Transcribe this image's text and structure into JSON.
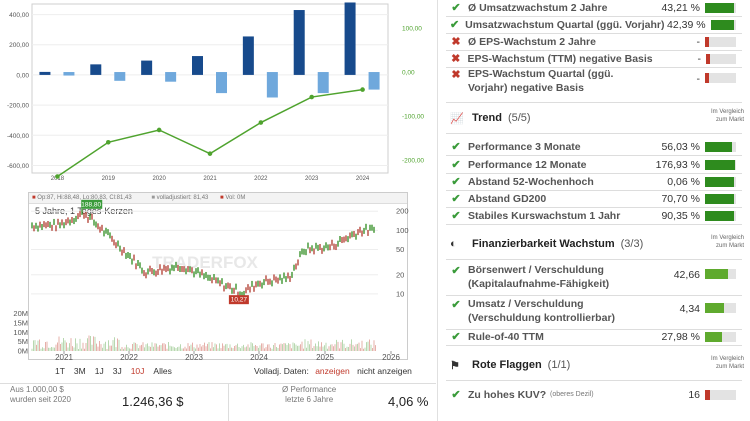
{
  "top_chart": {
    "left_ticks": [
      "400,00",
      "200,00",
      "0,00",
      "-200,00",
      "-400,00",
      "-600,00"
    ],
    "right_ticks": [
      "100,00",
      "0,00",
      "-100,00",
      "-200,00"
    ],
    "years": [
      "2018",
      "2019",
      "2020",
      "2021",
      "2022",
      "2023",
      "2024"
    ],
    "colors": {
      "dark_bar": "#174a8c",
      "light_bar": "#6fa8dc",
      "line": "#4fa32e"
    },
    "chart_data": {
      "type": "bar",
      "categories": [
        "2018",
        "2019",
        "2020",
        "2021",
        "2022",
        "2023",
        "2024"
      ],
      "series": [
        {
          "name": "",
          "axis": "left",
          "type": "bar",
          "values": [
            20,
            70,
            95,
            125,
            255,
            430,
            480
          ]
        },
        {
          "name": "",
          "axis": "right",
          "type": "bar",
          "values": [
            -8,
            -20,
            -22,
            -48,
            -58,
            -48,
            -40
          ]
        },
        {
          "name": "",
          "axis": "right",
          "type": "line",
          "values": [
            -238,
            -160,
            -132,
            -186,
            -115,
            -57,
            -40
          ]
        }
      ],
      "ylim": [
        -650,
        470
      ],
      "y2lim": [
        -230,
        155
      ]
    }
  },
  "price_chart": {
    "legend": [
      "Op:87, Hi:88,48, Lo:80,83, Cl:81,43",
      "volladjustiert: 81,43",
      "Vol: 0M"
    ],
    "title": "5 Jahre, 1 Tages-Kerzen",
    "watermark": "TRADERFOX",
    "right_ticks": [
      "200",
      "100",
      "50",
      "20",
      "10"
    ],
    "vol_ticks": [
      "20M",
      "15M",
      "10M",
      "5M",
      "0M"
    ],
    "year_ticks": [
      "2021",
      "2022",
      "2023",
      "2024",
      "2025",
      "2026"
    ],
    "high_flag": "188,80",
    "low_flag": "10,27",
    "chart_data": {
      "type": "line",
      "x": [
        "2021-01",
        "2021-06",
        "2022-01",
        "2022-06",
        "2023-01",
        "2023-06",
        "2024-01",
        "2024-04",
        "2024-10",
        "2025-01",
        "2025-06",
        "2025-12"
      ],
      "y": [
        120,
        188.8,
        55,
        22,
        28,
        18,
        10.27,
        15,
        18,
        50,
        55,
        100
      ],
      "log_scale": true,
      "ylim": [
        6,
        260
      ]
    },
    "periods": [
      "1T",
      "3M",
      "1J",
      "3J",
      "10J",
      "Alles"
    ],
    "active_period": "10J",
    "adj_label": "Volladj. Daten:",
    "adj_on": "anzeigen",
    "adj_off": "nicht anzeigen"
  },
  "info": {
    "left_label1": "Aus 1.000,00 $",
    "left_label2": "wurden seit 2020",
    "left_value": "1.246,36 $",
    "right_label1": "Ø Performance",
    "right_label2": "letzte 6 Jahre",
    "right_value": "4,06 %"
  },
  "growth": {
    "rows": [
      {
        "ok": true,
        "label": "Ø Umsatzwachstum 2 Jahre",
        "value": "43,21 %",
        "fill": 0.95,
        "color": "#2e8b1e"
      },
      {
        "ok": true,
        "label": "Umsatzwachstum Quartal (ggü. Vorjahr)",
        "value": "42,39 %",
        "fill": 0.92,
        "color": "#2e8b1e"
      },
      {
        "ok": false,
        "label": "Ø EPS-Wachstum 2 Jahre",
        "value": "-",
        "fill": 0.12,
        "color": "#c0392b"
      },
      {
        "ok": false,
        "label": "EPS-Wachstum (TTM) negative Basis",
        "value": "-",
        "fill": 0.12,
        "color": "#c0392b"
      },
      {
        "ok": false,
        "label": "EPS-Wachstum Quartal (ggü. Vorjahr) negative Basis",
        "value": "-",
        "fill": 0.12,
        "color": "#c0392b"
      }
    ]
  },
  "trend": {
    "title": "Trend",
    "count": "(5/5)",
    "compare": "Im Vergleich zum Markt",
    "rows": [
      {
        "label": "Performance 3 Monate",
        "value": "56,03 %",
        "fill": 0.88
      },
      {
        "label": "Performance 12 Monate",
        "value": "176,93 %",
        "fill": 0.98
      },
      {
        "label": "Abstand 52-Wochenhoch",
        "value": "0,06 %",
        "fill": 0.95
      },
      {
        "label": "Abstand GD200",
        "value": "70,70 %",
        "fill": 0.95
      },
      {
        "label": "Stabiles Kurswachstum 1 Jahr",
        "value": "90,35 %",
        "fill": 0.95
      }
    ]
  },
  "finance": {
    "title": "Finanzierbarkeit Wachstum",
    "count": "(3/3)",
    "compare": "Im Vergleich zum Markt",
    "rows": [
      {
        "label": "Börsenwert / Verschuldung (Kapitalaufnahme-Fähigkeit)",
        "value": "42,66",
        "fill": 0.75
      },
      {
        "label": "Umsatz / Verschuldung (Verschuldung kontrollierbar)",
        "value": "4,34",
        "fill": 0.62
      },
      {
        "label": "Rule-of-40 TTM",
        "value": "27,98 %",
        "fill": 0.55
      }
    ]
  },
  "flags": {
    "title": "Rote Flaggen",
    "count": "(1/1)",
    "compare": "Im Vergleich zum Markt",
    "rows": [
      {
        "label": "Zu hohes KUV?",
        "note": "(oberes Dezil)",
        "value": "16",
        "fill": 0.15
      }
    ]
  }
}
